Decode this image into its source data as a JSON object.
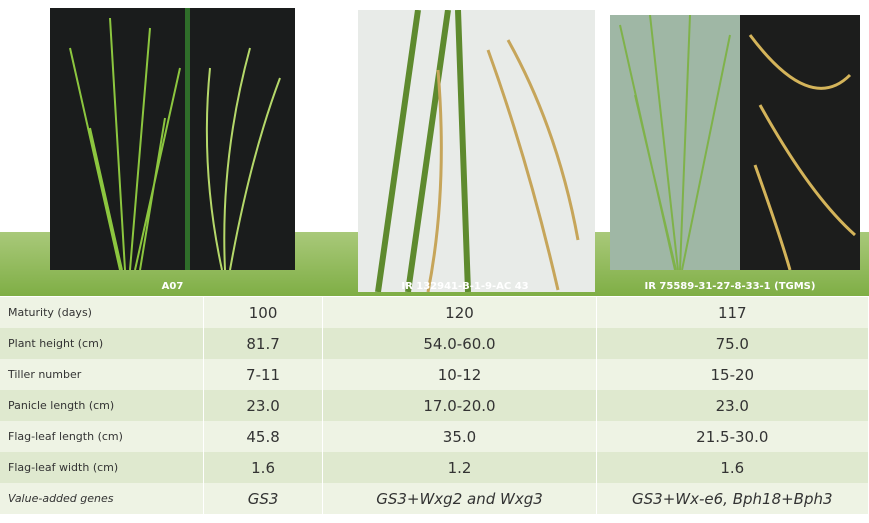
{
  "table": {
    "header": [
      "A07",
      "IR 132941-B-1-9-AC  43",
      "IR 75589-31-27-8-33-1  (TGMS)"
    ],
    "rows": [
      [
        "Maturity (days)",
        "100",
        "120",
        "117"
      ],
      [
        "Plant height (cm)",
        "81.7",
        "54.0-60.0",
        "75.0"
      ],
      [
        "Tiller number",
        "7-11",
        "10-12",
        "15-20"
      ],
      [
        "Panicle length (cm)",
        "23.0",
        "17.0-20.0",
        "23.0"
      ],
      [
        "Flag-leaf length (cm)",
        "45.8",
        "35.0",
        "21.5-30.0"
      ],
      [
        "Flag-leaf width (cm)",
        "1.6",
        "1.2",
        "1.6"
      ],
      [
        "Value-added genes",
        "GS3",
        "GS3+Wxg2 and Wxg3",
        "GS3+Wx-e6, Bph18+Bph3"
      ]
    ]
  }
}
